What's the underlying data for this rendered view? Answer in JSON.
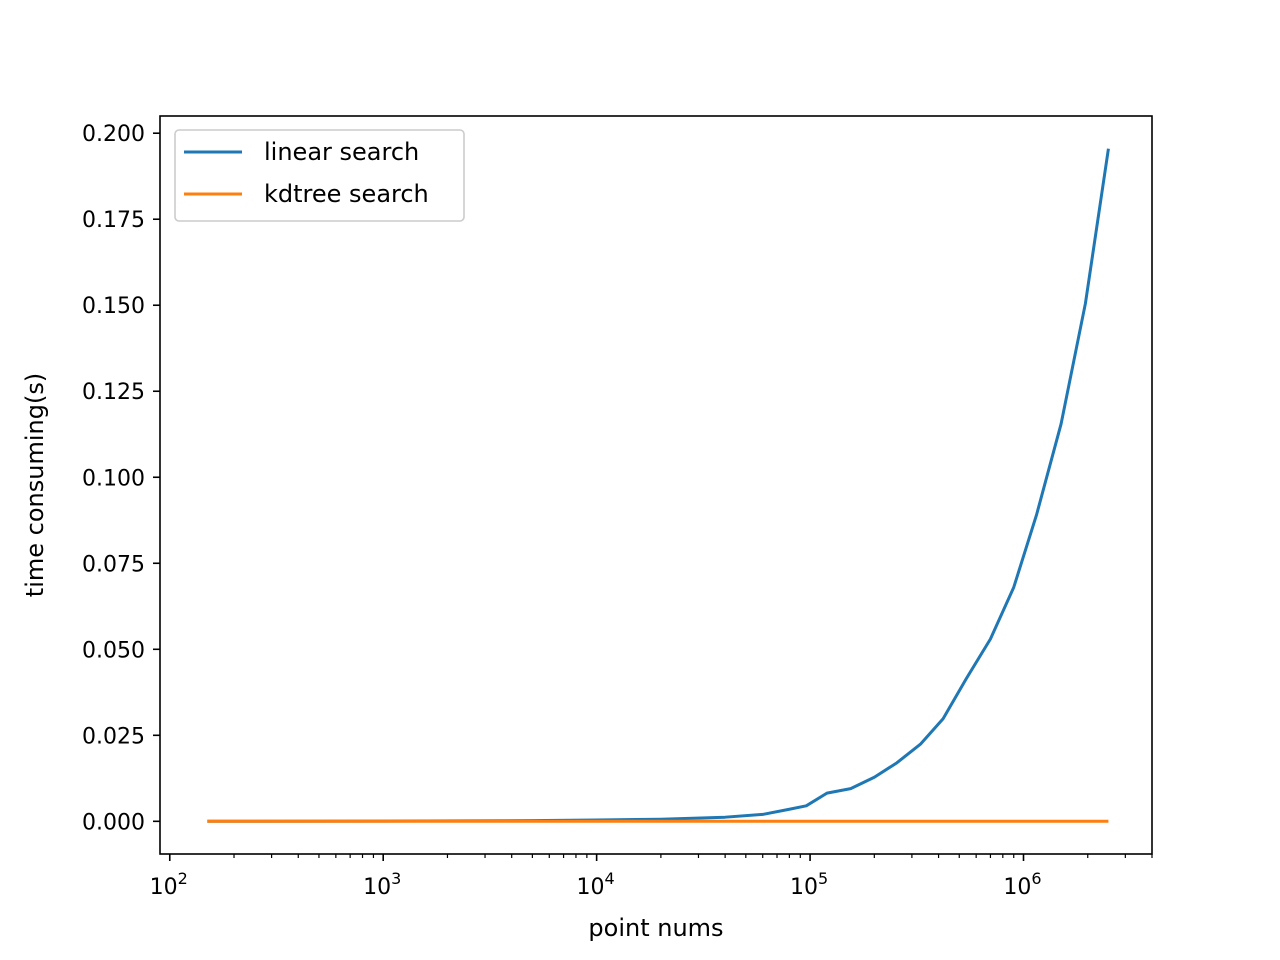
{
  "chart_data": {
    "type": "line",
    "title": "",
    "xlabel": "point nums",
    "ylabel": "time consuming(s)",
    "xscale": "log",
    "xlim": [
      90,
      4000000
    ],
    "ylim": [
      -0.0095,
      0.205
    ],
    "grid": false,
    "legend_position": "top-left",
    "x_ticks": [
      {
        "value": 100,
        "base": "10",
        "exp": "2"
      },
      {
        "value": 1000,
        "base": "10",
        "exp": "3"
      },
      {
        "value": 10000,
        "base": "10",
        "exp": "4"
      },
      {
        "value": 100000,
        "base": "10",
        "exp": "5"
      },
      {
        "value": 1000000,
        "base": "10",
        "exp": "6"
      }
    ],
    "y_ticks": [
      {
        "value": 0.0,
        "label": "0.000"
      },
      {
        "value": 0.025,
        "label": "0.025"
      },
      {
        "value": 0.05,
        "label": "0.050"
      },
      {
        "value": 0.075,
        "label": "0.075"
      },
      {
        "value": 0.1,
        "label": "0.100"
      },
      {
        "value": 0.125,
        "label": "0.125"
      },
      {
        "value": 0.15,
        "label": "0.150"
      },
      {
        "value": 0.175,
        "label": "0.175"
      },
      {
        "value": 0.2,
        "label": "0.200"
      }
    ],
    "series": [
      {
        "name": "linear search",
        "color": "#1f77b4",
        "x": [
          150,
          1000,
          5000,
          10000,
          20000,
          40000,
          60000,
          80000,
          96000,
          120000,
          155000,
          200000,
          255000,
          330000,
          420000,
          540000,
          700000,
          900000,
          1150000,
          1500000,
          1950000,
          2500000
        ],
        "y": [
          0.0,
          5e-05,
          0.0002,
          0.0004,
          0.0006,
          0.0012,
          0.002,
          0.0035,
          0.0045,
          0.0082,
          0.0095,
          0.0128,
          0.017,
          0.0225,
          0.0298,
          0.0415,
          0.053,
          0.068,
          0.089,
          0.1155,
          0.1505,
          0.1955
        ]
      },
      {
        "name": "kdtree search",
        "color": "#ff7f0e",
        "x": [
          150,
          1000,
          10000,
          100000,
          1000000,
          2500000
        ],
        "y": [
          0.0,
          0.0,
          0.0,
          0.0,
          0.0,
          0.0
        ]
      }
    ]
  }
}
